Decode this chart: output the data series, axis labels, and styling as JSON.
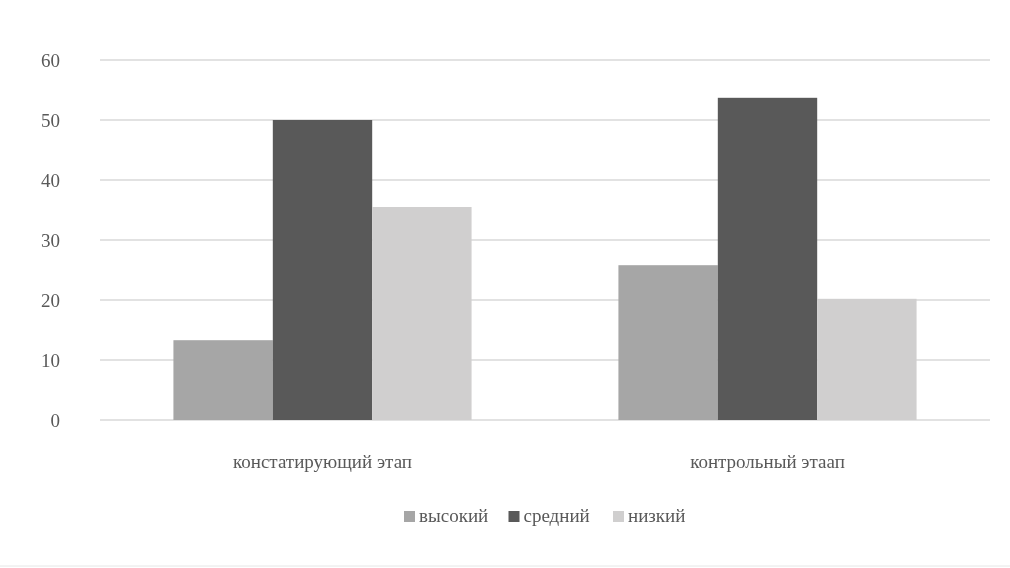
{
  "chart_data": {
    "type": "bar",
    "categories": [
      "констатирующий этап",
      "контрольный этаап"
    ],
    "series": [
      {
        "name": "высокий",
        "color": "#a6a6a6",
        "values": [
          13.3,
          25.8
        ]
      },
      {
        "name": "средний",
        "color": "#595959",
        "values": [
          50,
          53.7
        ]
      },
      {
        "name": "низкий",
        "color": "#d0cfcf",
        "values": [
          35.5,
          20.2
        ]
      }
    ],
    "ylim": [
      0,
      60
    ],
    "yticks": [
      0,
      10,
      20,
      30,
      40,
      50,
      60
    ],
    "grid": "y",
    "legend": "bottom"
  }
}
